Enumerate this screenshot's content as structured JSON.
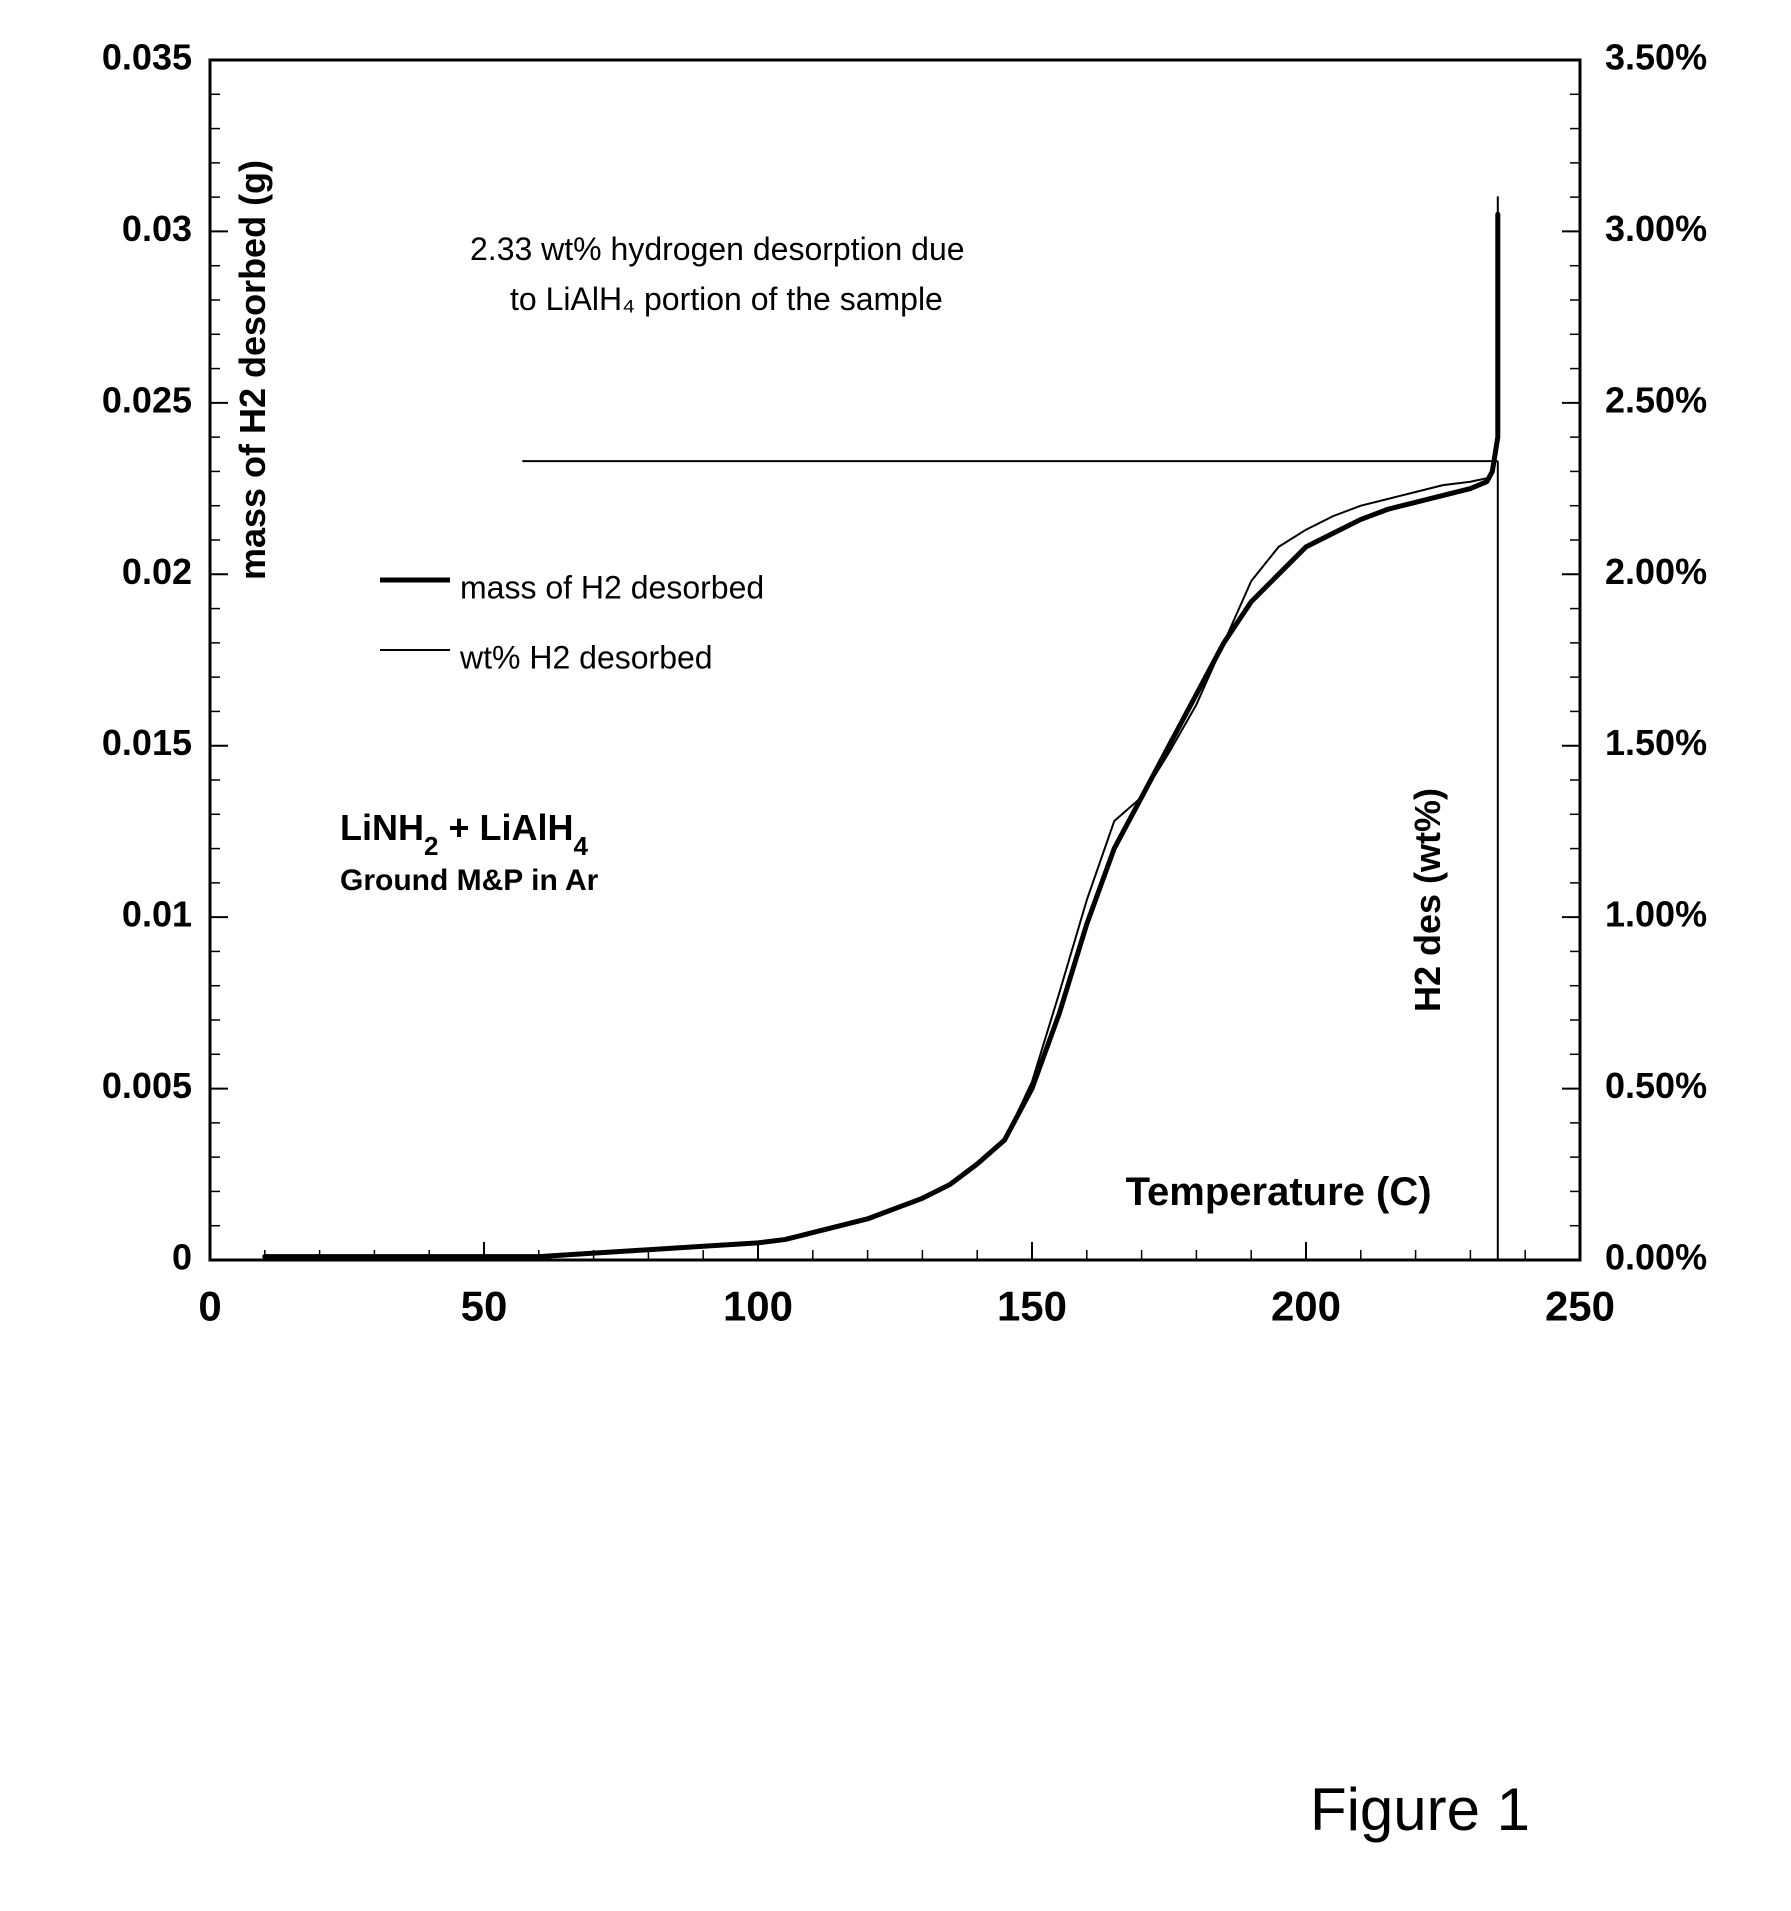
{
  "chart": {
    "type": "line",
    "background_color": "#ffffff",
    "plot_border_color": "#000000",
    "plot_border_width": 3,
    "x": {
      "min": 0,
      "max": 250,
      "ticks": [
        0,
        50,
        100,
        150,
        200,
        250
      ],
      "minor_step": 10,
      "label": "Temperature (C)",
      "label_fontsize": 40,
      "tick_fontsize": 42
    },
    "y_left": {
      "min": 0,
      "max": 0.035,
      "ticks": [
        0,
        0.005,
        0.01,
        0.015,
        0.02,
        0.025,
        0.03,
        0.035
      ],
      "tick_labels": [
        "0",
        "0.005",
        "0.01",
        "0.015",
        "0.02",
        "0.025",
        "0.03",
        "0.035"
      ],
      "minor_step": 0.001,
      "label": "mass of H2 desorbed (g)",
      "label_fontsize": 36,
      "tick_fontsize": 36
    },
    "y_right": {
      "min": 0,
      "max": 3.5,
      "ticks": [
        0,
        0.5,
        1.0,
        1.5,
        2.0,
        2.5,
        3.0,
        3.5
      ],
      "tick_labels": [
        "0.00%",
        "0.50%",
        "1.00%",
        "1.50%",
        "2.00%",
        "2.50%",
        "3.00%",
        "3.50%"
      ],
      "minor_step": 0.1,
      "label": "H2 des (wt%)",
      "label_fontsize": 36,
      "tick_fontsize": 36
    },
    "series": [
      {
        "name": "mass of H2 desorbed",
        "axis": "left",
        "color": "#000000",
        "width": 5,
        "data": [
          [
            10,
            0.0001
          ],
          [
            20,
            0.0001
          ],
          [
            30,
            0.0001
          ],
          [
            40,
            0.0001
          ],
          [
            50,
            0.0001
          ],
          [
            60,
            0.0001
          ],
          [
            70,
            0.0002
          ],
          [
            80,
            0.0003
          ],
          [
            90,
            0.0004
          ],
          [
            100,
            0.0005
          ],
          [
            105,
            0.0006
          ],
          [
            110,
            0.0008
          ],
          [
            115,
            0.001
          ],
          [
            120,
            0.0012
          ],
          [
            125,
            0.0015
          ],
          [
            130,
            0.0018
          ],
          [
            135,
            0.0022
          ],
          [
            140,
            0.0028
          ],
          [
            145,
            0.0035
          ],
          [
            150,
            0.005
          ],
          [
            155,
            0.0072
          ],
          [
            160,
            0.0098
          ],
          [
            165,
            0.012
          ],
          [
            170,
            0.0135
          ],
          [
            175,
            0.015
          ],
          [
            180,
            0.0165
          ],
          [
            185,
            0.018
          ],
          [
            190,
            0.0192
          ],
          [
            195,
            0.02
          ],
          [
            200,
            0.0208
          ],
          [
            205,
            0.0212
          ],
          [
            210,
            0.0216
          ],
          [
            215,
            0.0219
          ],
          [
            220,
            0.0221
          ],
          [
            225,
            0.0223
          ],
          [
            230,
            0.0225
          ],
          [
            233,
            0.0227
          ],
          [
            234,
            0.023
          ],
          [
            235,
            0.024
          ],
          [
            235,
            0.0305
          ]
        ]
      },
      {
        "name": "wt% H2 desorbed",
        "axis": "right",
        "color": "#000000",
        "width": 2,
        "data": [
          [
            10,
            0.01
          ],
          [
            20,
            0.01
          ],
          [
            30,
            0.01
          ],
          [
            40,
            0.01
          ],
          [
            50,
            0.01
          ],
          [
            60,
            0.01
          ],
          [
            70,
            0.02
          ],
          [
            80,
            0.03
          ],
          [
            90,
            0.04
          ],
          [
            100,
            0.05
          ],
          [
            105,
            0.06
          ],
          [
            110,
            0.08
          ],
          [
            115,
            0.1
          ],
          [
            120,
            0.12
          ],
          [
            125,
            0.15
          ],
          [
            130,
            0.18
          ],
          [
            135,
            0.22
          ],
          [
            140,
            0.28
          ],
          [
            145,
            0.35
          ],
          [
            150,
            0.52
          ],
          [
            155,
            0.78
          ],
          [
            160,
            1.05
          ],
          [
            165,
            1.28
          ],
          [
            170,
            1.35
          ],
          [
            175,
            1.48
          ],
          [
            180,
            1.62
          ],
          [
            185,
            1.8
          ],
          [
            190,
            1.98
          ],
          [
            195,
            2.08
          ],
          [
            200,
            2.13
          ],
          [
            205,
            2.17
          ],
          [
            210,
            2.2
          ],
          [
            215,
            2.22
          ],
          [
            220,
            2.24
          ],
          [
            225,
            2.26
          ],
          [
            230,
            2.27
          ],
          [
            233,
            2.28
          ],
          [
            234,
            2.3
          ],
          [
            235,
            2.4
          ],
          [
            235,
            3.1
          ]
        ]
      }
    ],
    "reference_line": {
      "y_right_value": 2.33,
      "x_start": 57,
      "x_end": 235,
      "vertical_drop_to_y": 0.0,
      "color": "#000000",
      "width": 2
    },
    "annotation": {
      "line1": "2.33 wt% hydrogen desorption due",
      "line2": "to LiAlH₄ portion of the sample",
      "fontsize": 32
    },
    "legend": {
      "items": [
        {
          "label": "mass of H2 desorbed",
          "line_width": 5,
          "color": "#000000"
        },
        {
          "label": "wt% H2 desorbed",
          "line_width": 2,
          "color": "#000000"
        }
      ],
      "fontsize": 32
    },
    "sample_label": {
      "line1_prefix": "LiNH",
      "line1_sub1": "2",
      "line1_mid": " + LiAlH",
      "line1_sub2": "4",
      "line2": "Ground M&P in Ar",
      "fontsize_main": 36,
      "fontsize_line2": 30
    }
  },
  "caption": "Figure 1",
  "caption_fontsize": 60
}
